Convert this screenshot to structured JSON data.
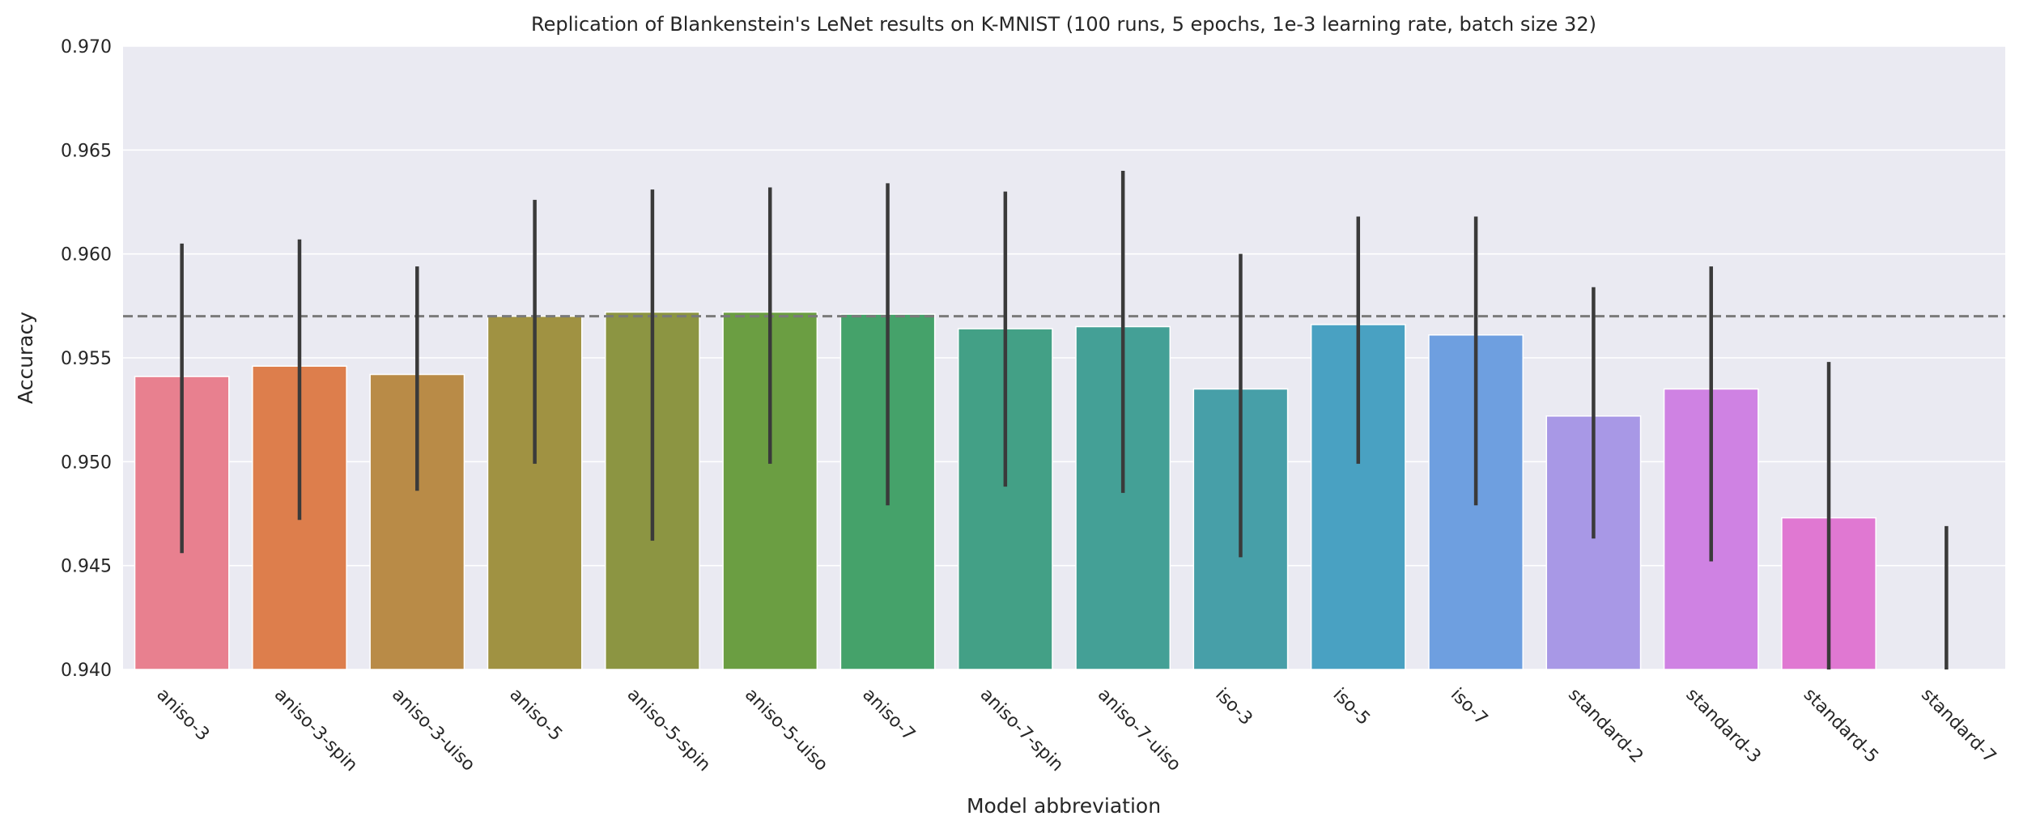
{
  "chart_data": {
    "type": "bar",
    "title": "Replication of Blankenstein's LeNet results on K-MNIST (100 runs, 5 epochs, 1e-3 learning rate, batch size 32)",
    "xlabel": "Model abbreviation",
    "ylabel": "Accuracy",
    "ylim": [
      0.94,
      0.97
    ],
    "yticks": [
      "0.940",
      "0.945",
      "0.950",
      "0.955",
      "0.960",
      "0.965",
      "0.970"
    ],
    "categories": [
      "aniso-3",
      "aniso-3-spin",
      "aniso-3-uiso",
      "aniso-5",
      "aniso-5-spin",
      "aniso-5-uiso",
      "aniso-7",
      "aniso-7-spin",
      "aniso-7-uiso",
      "iso-3",
      "iso-5",
      "iso-7",
      "standard-2",
      "standard-3",
      "standard-5",
      "standard-7"
    ],
    "values": [
      0.9541,
      0.9546,
      0.9542,
      0.957,
      0.9572,
      0.9572,
      0.9571,
      0.9564,
      0.9565,
      0.9535,
      0.9566,
      0.9561,
      0.9522,
      0.9535,
      0.9473,
      0.9396
    ],
    "error_low": [
      0.9456,
      0.9472,
      0.9486,
      0.9499,
      0.9462,
      0.9499,
      0.9479,
      0.9488,
      0.9485,
      0.9454,
      0.9499,
      0.9479,
      0.9463,
      0.9452,
      0.94,
      0.94
    ],
    "error_high": [
      0.9605,
      0.9607,
      0.9594,
      0.9626,
      0.9631,
      0.9632,
      0.9634,
      0.963,
      0.964,
      0.96,
      0.9618,
      0.9618,
      0.9584,
      0.9594,
      0.9548,
      0.9469
    ],
    "reference_line": 0.957,
    "grid": true,
    "colors": {
      "background": "#eaeaf2",
      "grid": "#ffffff",
      "errorbar": "#3a3a3a",
      "reference_line": "#7a7a7a",
      "bars": [
        "#e8808f",
        "#dd7e4c",
        "#b98b47",
        "#a09242",
        "#8c9542",
        "#6b9e42",
        "#45a26a",
        "#43a086",
        "#44a096",
        "#479fa8",
        "#49a1c2",
        "#6e9fe0",
        "#a898e6",
        "#cf82e3",
        "#e078d2",
        "#e67bb5"
      ]
    }
  }
}
